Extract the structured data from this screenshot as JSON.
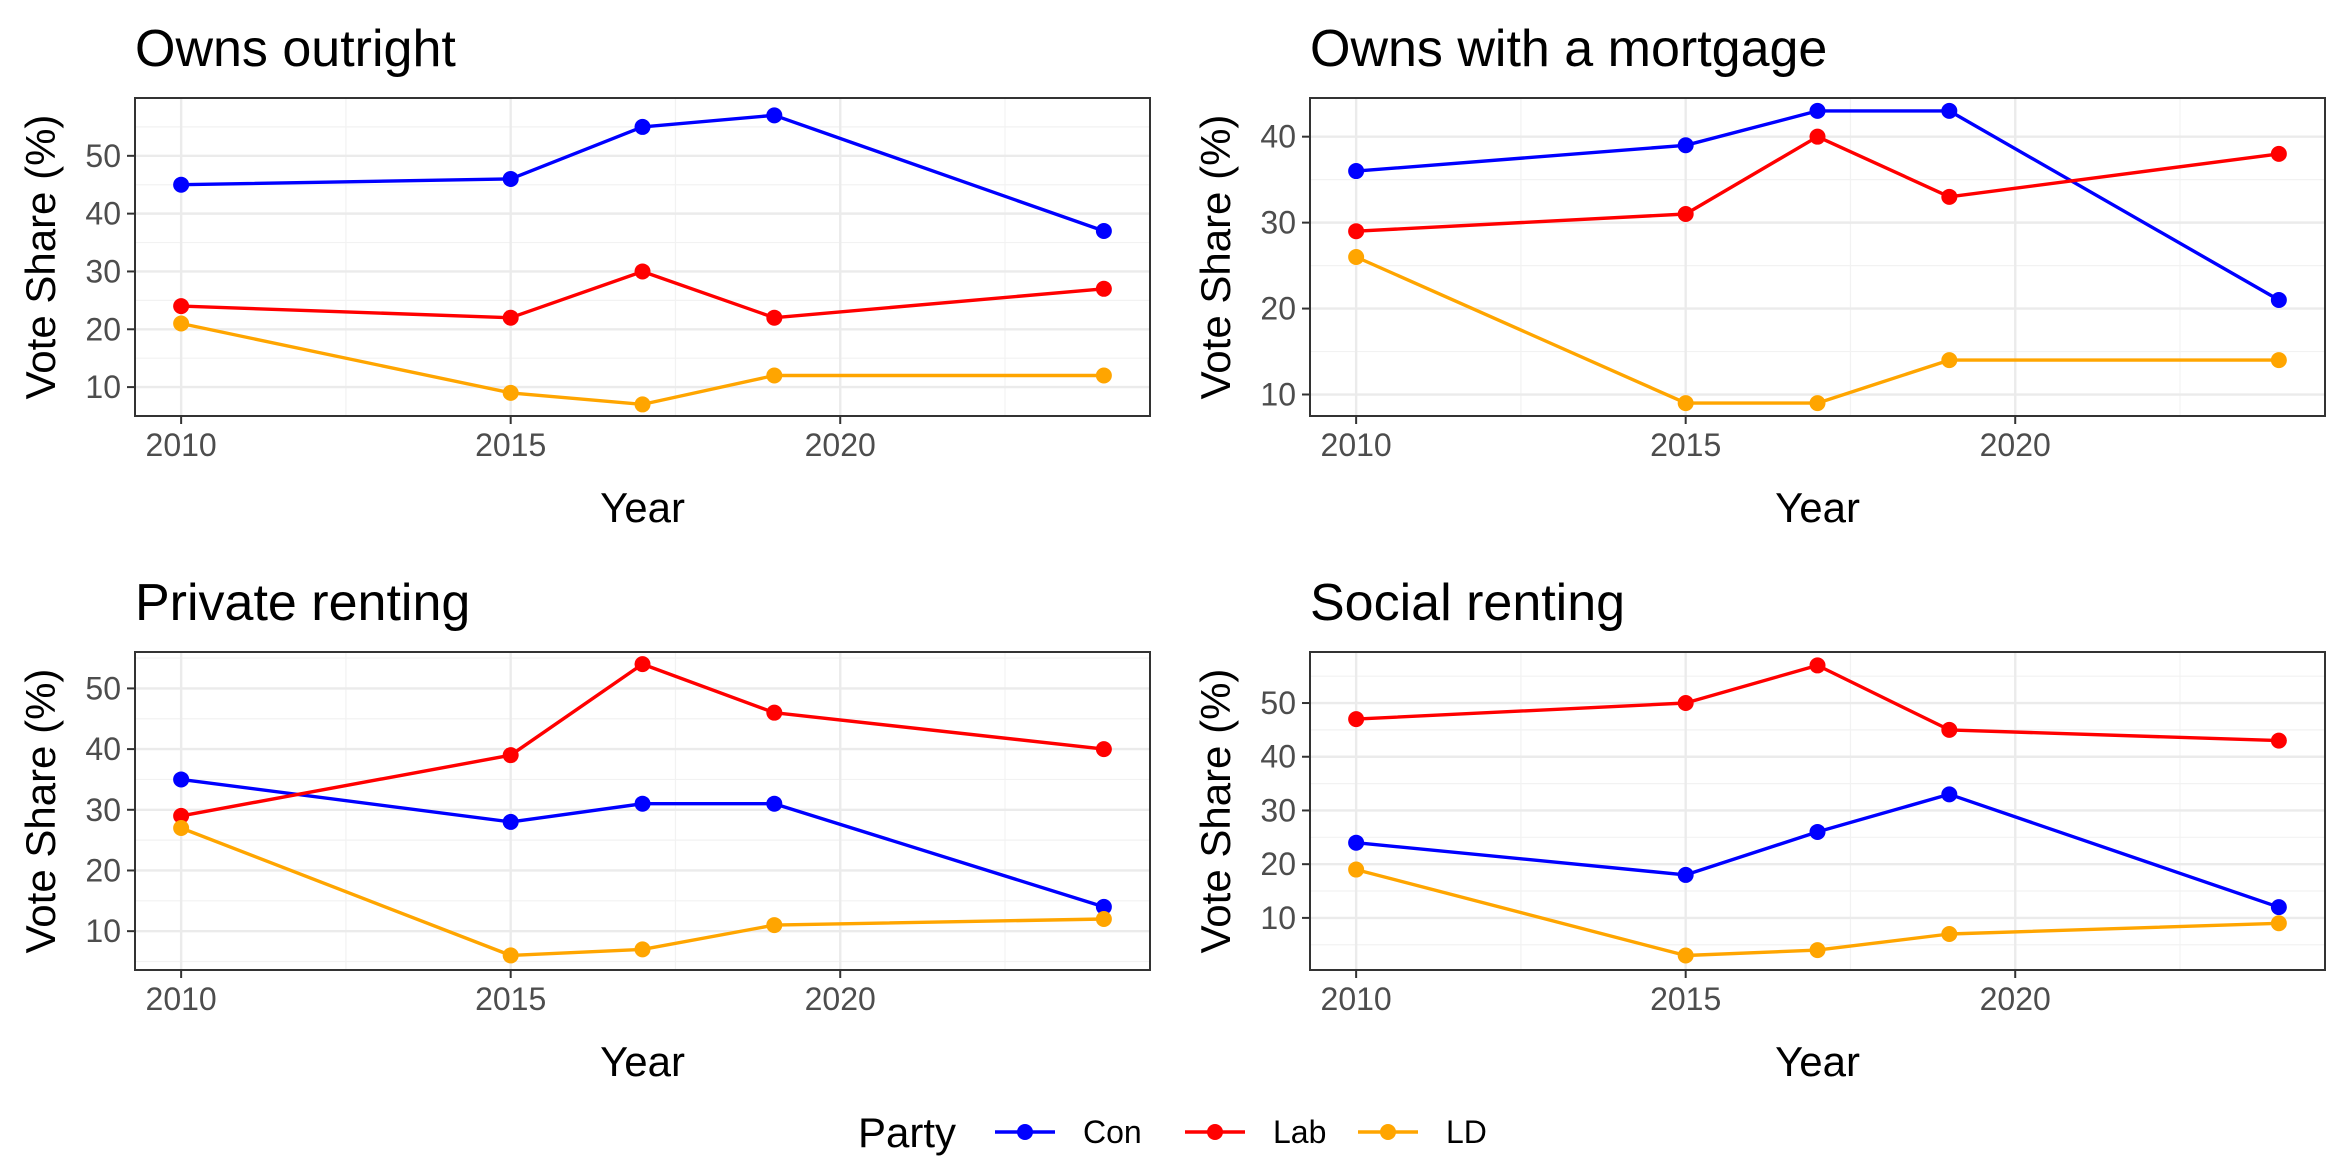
{
  "legend": {
    "title": "Party",
    "items": [
      {
        "label": "Con",
        "color": "#0000ff"
      },
      {
        "label": "Lab",
        "color": "#ff0000"
      },
      {
        "label": "LD",
        "color": "#ffa500"
      }
    ]
  },
  "chart_data": [
    {
      "type": "line",
      "title": "Owns outright",
      "xlabel": "Year",
      "ylabel": "Vote Share (%)",
      "x": [
        2010,
        2015,
        2017,
        2019,
        2024
      ],
      "xlim": [
        2009.3,
        2024.7
      ],
      "ylim": [
        5,
        60
      ],
      "xticks": [
        2010,
        2015,
        2020
      ],
      "yticks": [
        10,
        20,
        30,
        40,
        50
      ],
      "grid": true,
      "series": [
        {
          "name": "Con",
          "color": "#0000ff",
          "values": [
            45,
            46,
            55,
            57,
            37
          ]
        },
        {
          "name": "Lab",
          "color": "#ff0000",
          "values": [
            24,
            22,
            30,
            22,
            27
          ]
        },
        {
          "name": "LD",
          "color": "#ffa500",
          "values": [
            21,
            9,
            7,
            12,
            12
          ]
        }
      ]
    },
    {
      "type": "line",
      "title": "Owns with a mortgage",
      "xlabel": "Year",
      "ylabel": "Vote Share (%)",
      "x": [
        2010,
        2015,
        2017,
        2019,
        2024
      ],
      "xlim": [
        2009.3,
        2024.7
      ],
      "ylim": [
        7.5,
        44.5
      ],
      "xticks": [
        2010,
        2015,
        2020
      ],
      "yticks": [
        10,
        20,
        30,
        40
      ],
      "grid": true,
      "series": [
        {
          "name": "Con",
          "color": "#0000ff",
          "values": [
            36,
            39,
            43,
            43,
            21
          ]
        },
        {
          "name": "Lab",
          "color": "#ff0000",
          "values": [
            29,
            31,
            40,
            33,
            38
          ]
        },
        {
          "name": "LD",
          "color": "#ffa500",
          "values": [
            26,
            9,
            9,
            14,
            14
          ]
        }
      ]
    },
    {
      "type": "line",
      "title": "Private renting",
      "xlabel": "Year",
      "ylabel": "Vote Share (%)",
      "x": [
        2010,
        2015,
        2017,
        2019,
        2024
      ],
      "xlim": [
        2009.3,
        2024.7
      ],
      "ylim": [
        3.6,
        56
      ],
      "xticks": [
        2010,
        2015,
        2020
      ],
      "yticks": [
        10,
        20,
        30,
        40,
        50
      ],
      "grid": true,
      "series": [
        {
          "name": "Con",
          "color": "#0000ff",
          "values": [
            35,
            28,
            31,
            31,
            14
          ]
        },
        {
          "name": "Lab",
          "color": "#ff0000",
          "values": [
            29,
            39,
            54,
            46,
            40
          ]
        },
        {
          "name": "LD",
          "color": "#ffa500",
          "values": [
            27,
            6,
            7,
            11,
            12
          ]
        }
      ]
    },
    {
      "type": "line",
      "title": "Social renting",
      "xlabel": "Year",
      "ylabel": "Vote Share (%)",
      "x": [
        2010,
        2015,
        2017,
        2019,
        2024
      ],
      "xlim": [
        2009.3,
        2024.7
      ],
      "ylim": [
        0.3,
        59.5
      ],
      "xticks": [
        2010,
        2015,
        2020
      ],
      "yticks": [
        10,
        20,
        30,
        40,
        50
      ],
      "grid": true,
      "series": [
        {
          "name": "Con",
          "color": "#0000ff",
          "values": [
            24,
            18,
            26,
            33,
            12
          ]
        },
        {
          "name": "Lab",
          "color": "#ff0000",
          "values": [
            47,
            50,
            57,
            45,
            43
          ]
        },
        {
          "name": "LD",
          "color": "#ffa500",
          "values": [
            19,
            3,
            4,
            7,
            9
          ]
        }
      ]
    }
  ]
}
